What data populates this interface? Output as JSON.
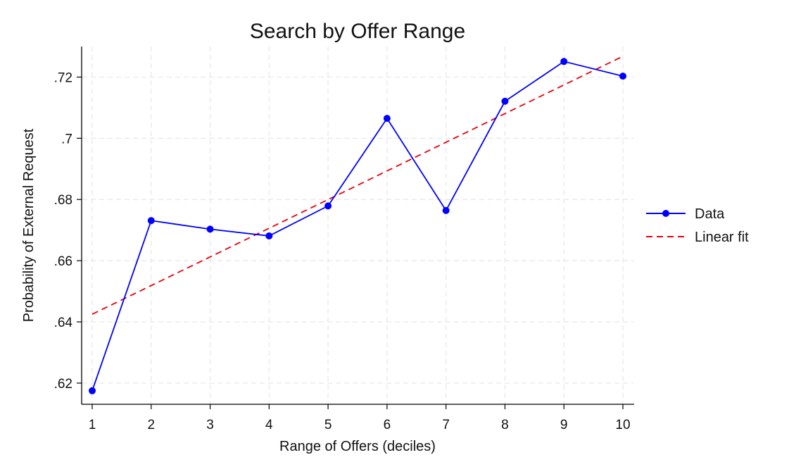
{
  "chart_data": {
    "type": "line",
    "title": "Search by Offer Range",
    "xlabel": "Range of Offers (deciles)",
    "ylabel": "Probability of External Request",
    "xlim": [
      1,
      10
    ],
    "ylim": [
      0.614,
      0.73
    ],
    "xticks": [
      1,
      2,
      3,
      4,
      5,
      6,
      7,
      8,
      9,
      10
    ],
    "xtick_labels": [
      "1",
      "2",
      "3",
      "4",
      "5",
      "6",
      "7",
      "8",
      "9",
      "10"
    ],
    "yticks": [
      0.62,
      0.64,
      0.66,
      0.68,
      0.7,
      0.72
    ],
    "ytick_labels": [
      ".62",
      ".64",
      ".66",
      ".68",
      ".7",
      ".72"
    ],
    "grid": true,
    "legend_position": "right",
    "series": [
      {
        "name": "Data",
        "style": "solid-markers",
        "color": "#0000ff",
        "x": [
          1,
          2,
          3,
          4,
          5,
          6,
          7,
          8,
          9,
          10
        ],
        "y": [
          0.6175,
          0.6731,
          0.6703,
          0.6681,
          0.6779,
          0.7065,
          0.6764,
          0.7121,
          0.7251,
          0.7203
        ]
      },
      {
        "name": "Linear fit",
        "style": "dashed",
        "color": "#e8000b",
        "x": [
          1,
          10
        ],
        "y": [
          0.6425,
          0.7268
        ]
      }
    ]
  }
}
